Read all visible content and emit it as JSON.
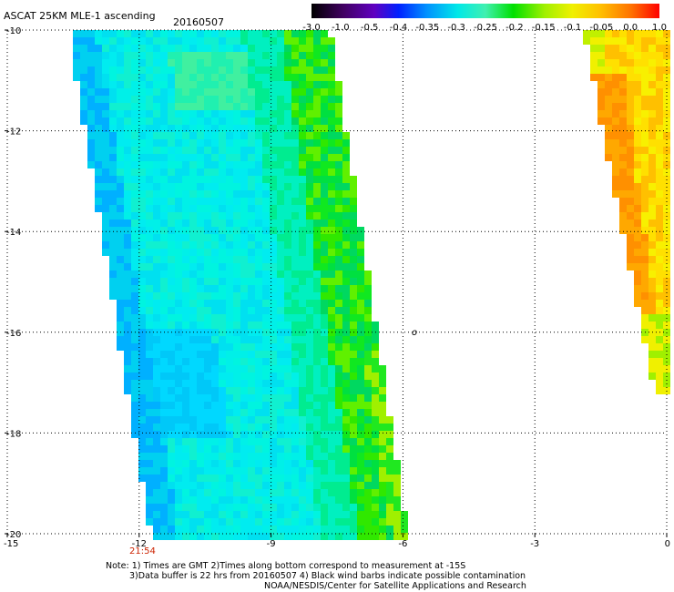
{
  "header": {
    "title": "ASCAT 25KM MLE-1 ascending",
    "date": "20160507"
  },
  "colorbar": {
    "labels": [
      "-3.0",
      "-1.0",
      "-0.5",
      "-0.4",
      "-0.35",
      "-0.3",
      "-0.25",
      "-0.2",
      "-0.15",
      "-0.1",
      "-0.05",
      "0.0",
      "1.0"
    ]
  },
  "axes": {
    "x_ticks": [
      "-15",
      "-12",
      "-9",
      "-6",
      "-3",
      "0"
    ],
    "y_ticks": [
      "-10",
      "-12",
      "-14",
      "-16",
      "-18",
      "-20"
    ],
    "x_range": [
      -15,
      0
    ],
    "y_range": [
      -20,
      -10
    ],
    "gridlines": "dotted"
  },
  "time_label": "21:54",
  "time_label_color": "#cc2200",
  "island_marker": "o",
  "notes": {
    "line1": "Note: 1) Times are GMT 2)Times along bottom correspond to measurement at -15S",
    "line2": "3)Data buffer is 22 hrs from 20160507 4) Black wind barbs indicate possible contamination",
    "line3": "NOAA/NESDIS/Center for Satellite Applications and Research"
  }
}
